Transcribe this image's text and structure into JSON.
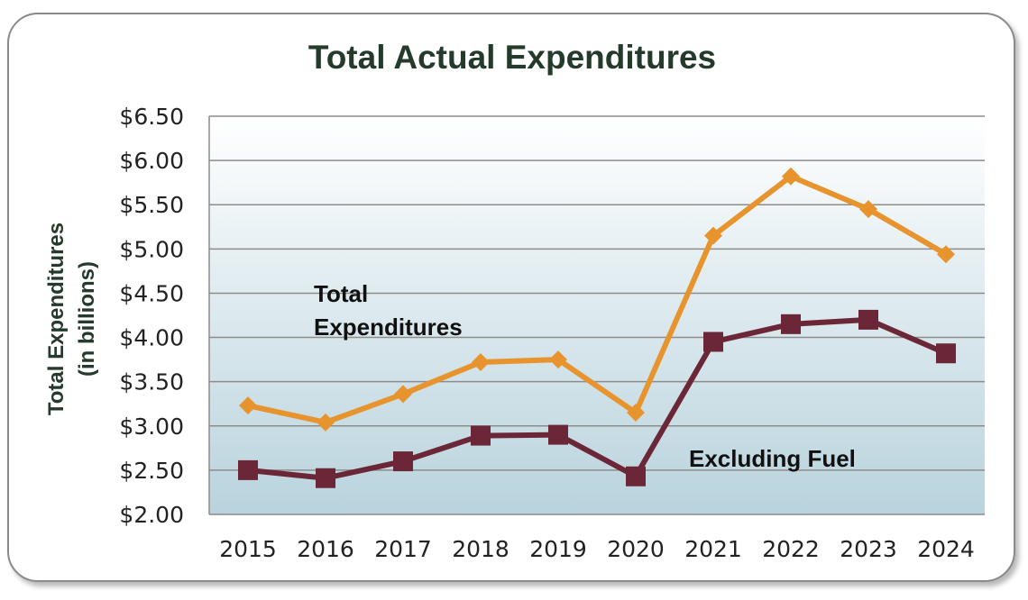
{
  "chart_data": {
    "type": "line",
    "title": "Total Actual Expenditures",
    "ylabel": [
      "Total Expenditures",
      "(in billions)"
    ],
    "xlabel": "",
    "categories": [
      "2015",
      "2016",
      "2017",
      "2018",
      "2019",
      "2020",
      "2021",
      "2022",
      "2023",
      "2024"
    ],
    "ylim": [
      2.0,
      6.5
    ],
    "yticks": [
      "$2.00",
      "$2.50",
      "$3.00",
      "$3.50",
      "$4.00",
      "$4.50",
      "$5.00",
      "$5.50",
      "$6.00",
      "$6.50"
    ],
    "grid": true,
    "legend": "none",
    "series": [
      {
        "name": "Total Expenditures",
        "color": "#e8942e",
        "marker": "diamond",
        "values": [
          3.23,
          3.04,
          3.36,
          3.72,
          3.75,
          3.15,
          5.15,
          5.82,
          5.45,
          4.94
        ]
      },
      {
        "name": "Excluding Fuel",
        "color": "#6b2737",
        "marker": "square",
        "values": [
          2.5,
          2.41,
          2.6,
          2.89,
          2.9,
          2.43,
          3.95,
          4.15,
          4.2,
          3.82
        ]
      }
    ],
    "annotations": [
      {
        "lines": [
          "Total",
          "Expenditures"
        ],
        "series": "Total Expenditures"
      },
      {
        "lines": [
          "Excluding Fuel"
        ],
        "series": "Excluding Fuel"
      }
    ]
  }
}
